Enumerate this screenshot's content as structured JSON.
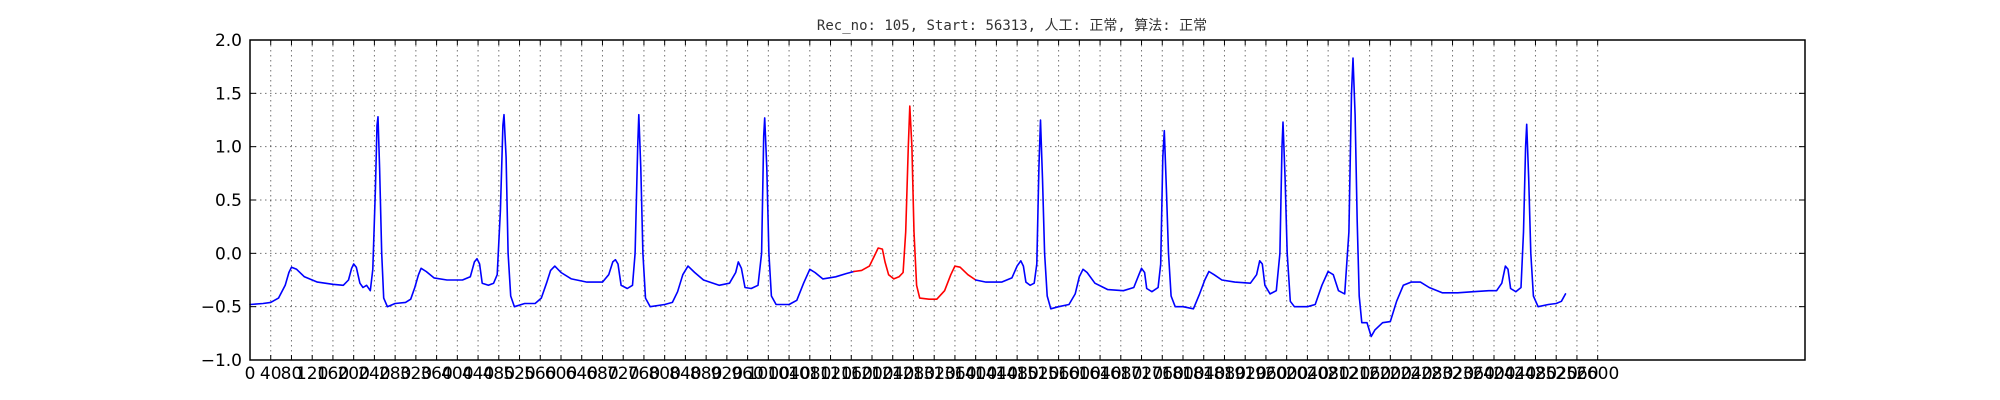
{
  "chart_data": {
    "type": "line",
    "title": "Rec_no: 105, Start: 56313, 人工: 正常, 算法: 正常",
    "xlabel": "",
    "ylabel": "",
    "xlim": [
      0,
      3000
    ],
    "ylim": [
      -1.0,
      2.0
    ],
    "yticks": [
      -1.0,
      -0.5,
      0.0,
      0.5,
      1.0,
      1.5,
      2.0
    ],
    "ytick_labels": [
      "−1.0",
      "−0.5",
      "0.0",
      "0.5",
      "1.0",
      "1.5",
      "2.0"
    ],
    "xticks_step": 40,
    "xticks_max": 2600,
    "grid": true,
    "colors": {
      "normal": "#0000ff",
      "highlight": "#ff0000"
    },
    "series": [
      {
        "color": "#0000ff",
        "points": [
          [
            0,
            -0.48
          ],
          [
            25,
            -0.47
          ],
          [
            40,
            -0.46
          ],
          [
            55,
            -0.42
          ],
          [
            68,
            -0.3
          ],
          [
            75,
            -0.18
          ],
          [
            80,
            -0.13
          ],
          [
            90,
            -0.15
          ],
          [
            105,
            -0.22
          ],
          [
            130,
            -0.27
          ],
          [
            160,
            -0.29
          ],
          [
            180,
            -0.3
          ],
          [
            190,
            -0.25
          ],
          [
            196,
            -0.14
          ],
          [
            200,
            -0.1
          ],
          [
            205,
            -0.13
          ],
          [
            212,
            -0.28
          ],
          [
            218,
            -0.32
          ],
          [
            225,
            -0.3
          ],
          [
            232,
            -0.35
          ],
          [
            237,
            -0.15
          ],
          [
            242,
            0.6
          ],
          [
            245,
            1.2
          ],
          [
            247,
            1.28
          ],
          [
            250,
            0.8
          ],
          [
            254,
            0.0
          ],
          [
            258,
            -0.42
          ],
          [
            265,
            -0.5
          ],
          [
            280,
            -0.47
          ],
          [
            300,
            -0.46
          ],
          [
            310,
            -0.43
          ],
          [
            318,
            -0.32
          ],
          [
            325,
            -0.2
          ],
          [
            330,
            -0.14
          ],
          [
            340,
            -0.17
          ],
          [
            355,
            -0.23
          ],
          [
            380,
            -0.25
          ],
          [
            410,
            -0.25
          ],
          [
            425,
            -0.22
          ],
          [
            433,
            -0.08
          ],
          [
            438,
            -0.05
          ],
          [
            443,
            -0.1
          ],
          [
            448,
            -0.28
          ],
          [
            460,
            -0.3
          ],
          [
            470,
            -0.28
          ],
          [
            477,
            -0.2
          ],
          [
            483,
            0.4
          ],
          [
            488,
            1.2
          ],
          [
            490,
            1.3
          ],
          [
            494,
            0.9
          ],
          [
            498,
            0.0
          ],
          [
            503,
            -0.4
          ],
          [
            510,
            -0.5
          ],
          [
            530,
            -0.47
          ],
          [
            550,
            -0.47
          ],
          [
            562,
            -0.42
          ],
          [
            572,
            -0.28
          ],
          [
            580,
            -0.16
          ],
          [
            588,
            -0.12
          ],
          [
            600,
            -0.18
          ],
          [
            620,
            -0.24
          ],
          [
            650,
            -0.27
          ],
          [
            680,
            -0.27
          ],
          [
            692,
            -0.2
          ],
          [
            700,
            -0.08
          ],
          [
            705,
            -0.06
          ],
          [
            710,
            -0.1
          ],
          [
            716,
            -0.3
          ],
          [
            728,
            -0.33
          ],
          [
            738,
            -0.3
          ],
          [
            743,
            0.0
          ],
          [
            748,
            1.0
          ],
          [
            750,
            1.3
          ],
          [
            754,
            0.8
          ],
          [
            758,
            0.0
          ],
          [
            763,
            -0.42
          ],
          [
            772,
            -0.5
          ],
          [
            800,
            -0.48
          ],
          [
            815,
            -0.46
          ],
          [
            825,
            -0.36
          ],
          [
            835,
            -0.2
          ],
          [
            845,
            -0.12
          ],
          [
            858,
            -0.18
          ],
          [
            875,
            -0.25
          ],
          [
            905,
            -0.3
          ],
          [
            925,
            -0.28
          ],
          [
            937,
            -0.18
          ],
          [
            942,
            -0.08
          ],
          [
            948,
            -0.14
          ],
          [
            955,
            -0.32
          ],
          [
            967,
            -0.33
          ],
          [
            980,
            -0.3
          ],
          [
            987,
            0.0
          ],
          [
            991,
            1.1
          ],
          [
            993,
            1.27
          ],
          [
            997,
            0.8
          ],
          [
            1001,
            0.0
          ],
          [
            1006,
            -0.4
          ],
          [
            1015,
            -0.48
          ],
          [
            1040,
            -0.48
          ],
          [
            1055,
            -0.44
          ],
          [
            1068,
            -0.28
          ],
          [
            1080,
            -0.15
          ],
          [
            1090,
            -0.18
          ],
          [
            1105,
            -0.24
          ],
          [
            1130,
            -0.22
          ],
          [
            1150,
            -0.19
          ],
          [
            1165,
            -0.17
          ]
        ]
      },
      {
        "color": "#ff0000",
        "points": [
          [
            1165,
            -0.17
          ],
          [
            1180,
            -0.16
          ],
          [
            1195,
            -0.12
          ],
          [
            1205,
            -0.02
          ],
          [
            1212,
            0.05
          ],
          [
            1220,
            0.04
          ],
          [
            1225,
            -0.08
          ],
          [
            1232,
            -0.2
          ],
          [
            1242,
            -0.24
          ],
          [
            1252,
            -0.22
          ],
          [
            1260,
            -0.18
          ],
          [
            1265,
            0.2
          ],
          [
            1270,
            1.0
          ],
          [
            1273,
            1.38
          ],
          [
            1277,
            1.0
          ],
          [
            1281,
            0.2
          ],
          [
            1286,
            -0.3
          ],
          [
            1292,
            -0.42
          ],
          [
            1310,
            -0.43
          ],
          [
            1325,
            -0.43
          ],
          [
            1340,
            -0.35
          ],
          [
            1352,
            -0.2
          ],
          [
            1360,
            -0.12
          ],
          [
            1370,
            -0.13
          ],
          [
            1385,
            -0.2
          ],
          [
            1400,
            -0.25
          ]
        ]
      },
      {
        "color": "#0000ff",
        "points": [
          [
            1400,
            -0.25
          ],
          [
            1420,
            -0.27
          ],
          [
            1450,
            -0.27
          ],
          [
            1470,
            -0.23
          ],
          [
            1480,
            -0.12
          ],
          [
            1487,
            -0.07
          ],
          [
            1492,
            -0.12
          ],
          [
            1497,
            -0.27
          ],
          [
            1505,
            -0.3
          ],
          [
            1513,
            -0.28
          ],
          [
            1518,
            -0.1
          ],
          [
            1522,
            0.8
          ],
          [
            1525,
            1.25
          ],
          [
            1529,
            0.7
          ],
          [
            1533,
            0.0
          ],
          [
            1538,
            -0.4
          ],
          [
            1545,
            -0.52
          ],
          [
            1560,
            -0.5
          ],
          [
            1580,
            -0.48
          ],
          [
            1592,
            -0.38
          ],
          [
            1600,
            -0.22
          ],
          [
            1607,
            -0.15
          ],
          [
            1615,
            -0.18
          ],
          [
            1630,
            -0.28
          ],
          [
            1655,
            -0.34
          ],
          [
            1685,
            -0.35
          ],
          [
            1705,
            -0.32
          ],
          [
            1715,
            -0.2
          ],
          [
            1720,
            -0.14
          ],
          [
            1726,
            -0.18
          ],
          [
            1730,
            -0.33
          ],
          [
            1740,
            -0.36
          ],
          [
            1752,
            -0.32
          ],
          [
            1757,
            -0.1
          ],
          [
            1761,
            0.9
          ],
          [
            1764,
            1.15
          ],
          [
            1768,
            0.6
          ],
          [
            1772,
            0.0
          ],
          [
            1777,
            -0.4
          ],
          [
            1785,
            -0.5
          ],
          [
            1800,
            -0.5
          ],
          [
            1820,
            -0.52
          ],
          [
            1832,
            -0.38
          ],
          [
            1842,
            -0.25
          ],
          [
            1850,
            -0.17
          ],
          [
            1860,
            -0.2
          ],
          [
            1875,
            -0.25
          ],
          [
            1900,
            -0.27
          ],
          [
            1930,
            -0.28
          ],
          [
            1942,
            -0.2
          ],
          [
            1948,
            -0.07
          ],
          [
            1953,
            -0.1
          ],
          [
            1958,
            -0.3
          ],
          [
            1968,
            -0.38
          ],
          [
            1980,
            -0.35
          ],
          [
            1987,
            0.0
          ],
          [
            1991,
            1.0
          ],
          [
            1993,
            1.23
          ],
          [
            1997,
            0.7
          ],
          [
            2001,
            0.0
          ],
          [
            2007,
            -0.45
          ],
          [
            2015,
            -0.5
          ],
          [
            2040,
            -0.5
          ],
          [
            2055,
            -0.48
          ],
          [
            2068,
            -0.3
          ],
          [
            2080,
            -0.17
          ],
          [
            2090,
            -0.2
          ],
          [
            2100,
            -0.35
          ],
          [
            2112,
            -0.38
          ],
          [
            2120,
            0.2
          ],
          [
            2125,
            1.5
          ],
          [
            2128,
            1.83
          ],
          [
            2132,
            1.3
          ],
          [
            2136,
            0.3
          ],
          [
            2140,
            -0.4
          ],
          [
            2145,
            -0.65
          ],
          [
            2155,
            -0.65
          ],
          [
            2163,
            -0.78
          ],
          [
            2170,
            -0.72
          ],
          [
            2185,
            -0.65
          ],
          [
            2200,
            -0.64
          ],
          [
            2212,
            -0.45
          ],
          [
            2225,
            -0.3
          ],
          [
            2240,
            -0.27
          ],
          [
            2258,
            -0.27
          ],
          [
            2275,
            -0.32
          ],
          [
            2300,
            -0.37
          ],
          [
            2330,
            -0.37
          ],
          [
            2360,
            -0.36
          ],
          [
            2390,
            -0.35
          ],
          [
            2405,
            -0.35
          ],
          [
            2415,
            -0.28
          ],
          [
            2422,
            -0.12
          ],
          [
            2427,
            -0.15
          ],
          [
            2432,
            -0.33
          ],
          [
            2442,
            -0.36
          ],
          [
            2452,
            -0.32
          ],
          [
            2457,
            0.2
          ],
          [
            2461,
            1.0
          ],
          [
            2463,
            1.21
          ],
          [
            2467,
            0.7
          ],
          [
            2471,
            0.0
          ],
          [
            2476,
            -0.4
          ],
          [
            2485,
            -0.5
          ],
          [
            2505,
            -0.48
          ],
          [
            2520,
            -0.47
          ],
          [
            2530,
            -0.45
          ],
          [
            2538,
            -0.38
          ]
        ]
      }
    ]
  }
}
